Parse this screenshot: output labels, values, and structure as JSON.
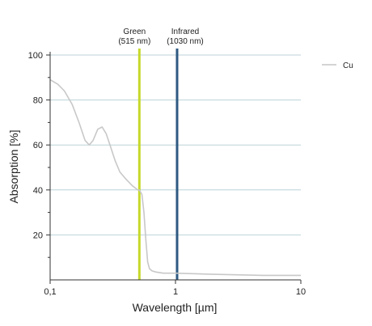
{
  "chart_data": {
    "type": "line",
    "title": "",
    "xlabel": "Wavelength [µm]",
    "ylabel": "Absorption [%]",
    "xscale": "log",
    "xlim": [
      0.1,
      10
    ],
    "ylim": [
      0,
      100
    ],
    "x_ticks": [
      0.1,
      1,
      10
    ],
    "x_tick_labels": [
      "0,1",
      "1",
      "10"
    ],
    "y_ticks": [
      20,
      40,
      60,
      80,
      100
    ],
    "y_tick_labels": [
      "20",
      "40",
      "60",
      "80",
      "100"
    ],
    "grid": true,
    "legend_position": "top-right",
    "series": [
      {
        "name": "Cu",
        "color": "#c8c8c8",
        "x": [
          0.1,
          0.115,
          0.13,
          0.15,
          0.17,
          0.19,
          0.205,
          0.22,
          0.24,
          0.26,
          0.28,
          0.3,
          0.33,
          0.36,
          0.4,
          0.45,
          0.5,
          0.515,
          0.54,
          0.56,
          0.58,
          0.6,
          0.62,
          0.65,
          0.7,
          0.8,
          1.0,
          2.0,
          5.0,
          10.0
        ],
        "y": [
          89,
          87,
          84,
          78,
          70,
          62,
          60,
          62,
          67,
          68,
          65,
          60,
          53,
          48,
          45,
          42,
          40,
          40,
          38,
          30,
          18,
          8,
          5,
          4,
          3.5,
          3,
          3,
          2.5,
          2,
          2
        ]
      }
    ],
    "annotations": [
      {
        "label_line1": "Green",
        "label_line2": "(515 nm)",
        "x": 0.515,
        "color": "#c6d92b"
      },
      {
        "label_line1": "Infrared",
        "label_line2": "(1030 nm)",
        "x": 1.03,
        "color": "#2e5a82"
      }
    ]
  }
}
